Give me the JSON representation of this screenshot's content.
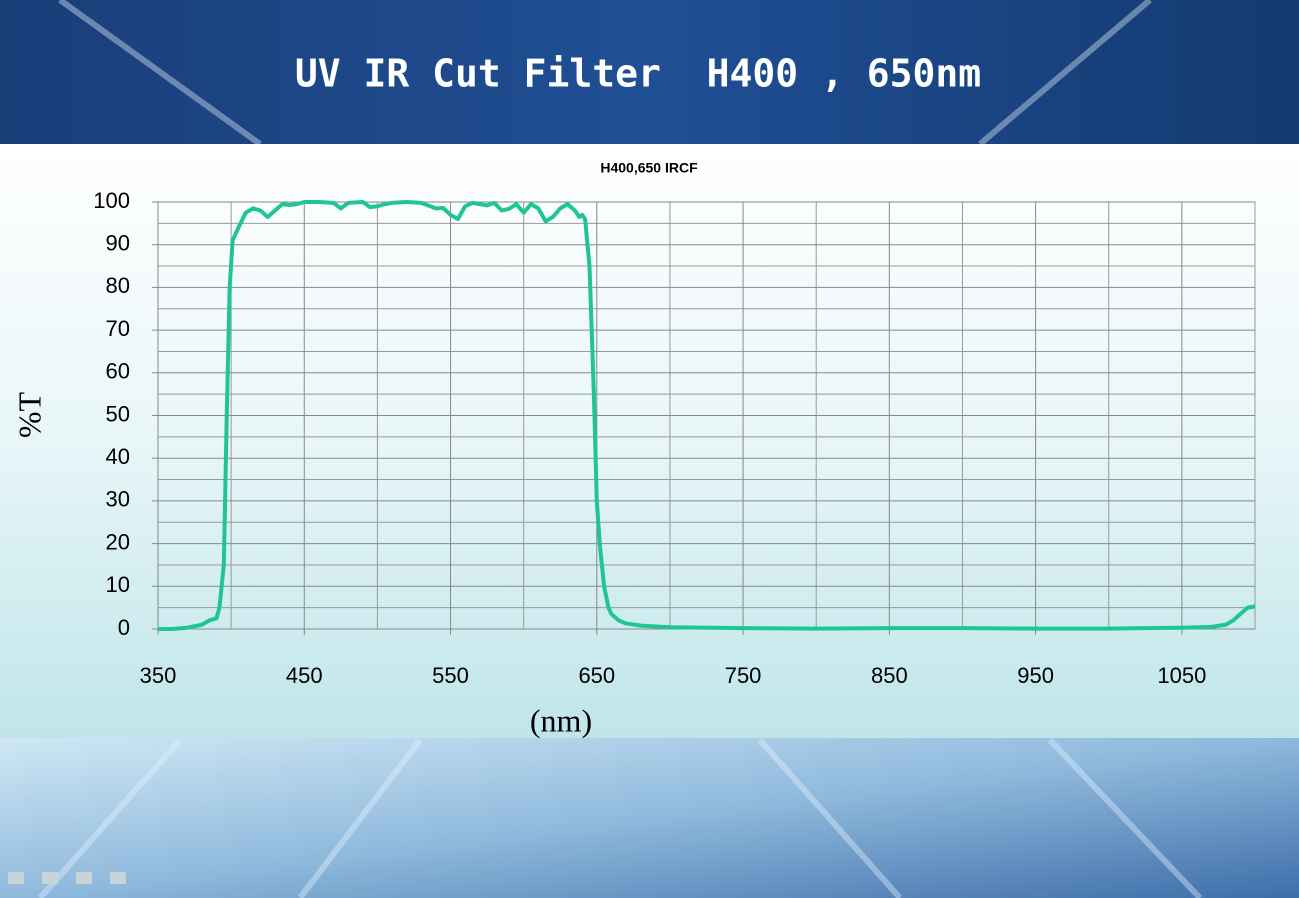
{
  "slide_title": "UV IR Cut Filter  H400 , 650nm",
  "chart_data": {
    "type": "line",
    "title": "H400,650 IRCF",
    "x_label": "(nm)",
    "y_label": "%T",
    "xlim": [
      350,
      1100
    ],
    "xticks": [
      350,
      450,
      550,
      650,
      750,
      850,
      950,
      1050
    ],
    "xminorticks": [
      400,
      500,
      600,
      700,
      800,
      900,
      1000,
      1100
    ],
    "ylim": [
      0,
      100
    ],
    "yticks": [
      0,
      10,
      20,
      30,
      40,
      50,
      60,
      70,
      80,
      90,
      100
    ],
    "yminorticks": [
      5,
      15,
      25,
      35,
      45,
      55,
      65,
      75,
      85,
      95
    ],
    "grid": true,
    "x": [
      350,
      360,
      370,
      380,
      385,
      390,
      392,
      395,
      397,
      399,
      401,
      405,
      410,
      415,
      420,
      425,
      430,
      435,
      440,
      445,
      450,
      460,
      470,
      475,
      480,
      490,
      495,
      500,
      505,
      510,
      520,
      530,
      540,
      545,
      550,
      555,
      560,
      565,
      570,
      575,
      580,
      585,
      590,
      595,
      600,
      605,
      610,
      615,
      620,
      625,
      630,
      635,
      638,
      640,
      642,
      645,
      648,
      650,
      652,
      655,
      658,
      660,
      665,
      670,
      680,
      700,
      750,
      800,
      850,
      900,
      950,
      1000,
      1050,
      1070,
      1080,
      1085,
      1090,
      1095,
      1100
    ],
    "series": [
      {
        "name": "H400,650 IRCF",
        "color": "#1fc593",
        "values": [
          0,
          0,
          0.3,
          1,
          2,
          2.5,
          5,
          15,
          50,
          80,
          91,
          94,
          97.5,
          98.5,
          98,
          96.5,
          98,
          99.5,
          99.3,
          99.5,
          100,
          100,
          99.8,
          98.5,
          99.8,
          100,
          98.8,
          99,
          99.5,
          99.8,
          100,
          99.8,
          98.5,
          98.6,
          97,
          96,
          99,
          99.8,
          99.5,
          99.2,
          99.8,
          98,
          98.4,
          99.5,
          97.5,
          99.5,
          98.5,
          95.5,
          96.5,
          98.5,
          99.5,
          98,
          96.5,
          97,
          96,
          85,
          55,
          30,
          20,
          10,
          5,
          3.5,
          2,
          1.3,
          0.8,
          0.4,
          0.2,
          0.1,
          0.2,
          0.2,
          0.1,
          0.1,
          0.3,
          0.5,
          1,
          2,
          3.5,
          5,
          5.3
        ]
      }
    ]
  }
}
